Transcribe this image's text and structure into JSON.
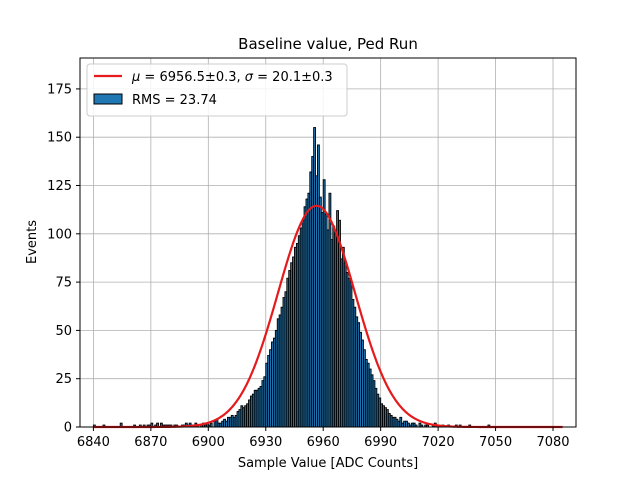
{
  "chart_data": {
    "type": "bar",
    "title": "Baseline value, Ped Run",
    "xlabel": "Sample Value [ADC Counts]",
    "ylabel": "Events",
    "xlim": [
      6833,
      7092
    ],
    "ylim": [
      0,
      191
    ],
    "xticks": [
      6840,
      6870,
      6900,
      6930,
      6960,
      6990,
      7020,
      7050,
      7080
    ],
    "yticks": [
      0,
      25,
      50,
      75,
      100,
      125,
      150,
      175
    ],
    "grid": true,
    "legend_position": "top-left",
    "histogram": {
      "name": "RMS = 23.74",
      "color": "#1f77b4",
      "bin_start": 6840,
      "bin_width": 1,
      "counts": [
        1,
        0,
        0,
        0,
        0,
        1,
        0,
        0,
        0,
        0,
        0,
        0,
        0,
        0,
        2,
        0,
        0,
        0,
        0,
        0,
        0,
        1,
        0,
        0,
        1,
        0,
        1,
        0,
        1,
        1,
        2,
        0,
        1,
        2,
        0,
        2,
        1,
        1,
        1,
        1,
        1,
        0,
        1,
        1,
        0,
        0,
        1,
        1,
        2,
        1,
        2,
        1,
        1,
        2,
        1,
        0,
        1,
        2,
        1,
        2,
        1,
        2,
        0,
        3,
        4,
        2,
        2,
        3,
        4,
        3,
        5,
        5,
        6,
        5,
        6,
        8,
        9,
        11,
        10,
        11,
        12,
        14,
        16,
        17,
        19,
        19,
        20,
        21,
        24,
        26,
        33,
        37,
        40,
        44,
        46,
        50,
        56,
        58,
        62,
        67,
        70,
        77,
        81,
        85,
        88,
        93,
        95,
        99,
        103,
        107,
        114,
        118,
        121,
        132,
        140,
        155,
        130,
        146,
        119,
        111,
        128,
        110,
        102,
        121,
        97,
        104,
        100,
        112,
        107,
        87,
        93,
        85,
        80,
        77,
        75,
        66,
        62,
        57,
        54,
        49,
        45,
        40,
        35,
        33,
        30,
        27,
        24,
        20,
        17,
        15,
        12,
        11,
        10,
        9,
        7,
        6,
        5,
        5,
        4,
        3,
        5,
        2,
        3,
        3,
        2,
        1,
        2,
        2,
        1,
        0,
        2,
        1,
        0,
        1,
        1,
        0,
        0,
        1,
        2,
        1,
        0,
        0,
        1,
        0,
        0,
        1,
        0,
        0,
        0,
        1,
        0,
        1,
        0,
        0,
        0,
        0,
        1,
        0,
        0,
        0,
        0,
        0,
        0,
        0,
        0,
        0,
        1,
        0,
        0,
        0,
        0,
        0,
        0,
        0,
        0,
        0,
        0,
        0,
        0,
        0,
        0,
        0,
        0,
        0,
        0,
        0,
        0,
        0,
        0,
        0,
        0,
        0,
        0,
        0,
        0,
        0,
        0,
        0,
        0,
        0,
        0,
        0,
        0,
        0,
        0,
        0,
        0
      ]
    },
    "fit": {
      "name": "μ = 6956.5±0.3, σ = 20.1±0.3",
      "name_parts": [
        "μ",
        " = 6956.5±0.3, ",
        "σ",
        " = 20.1±0.3"
      ],
      "type": "gaussian",
      "mu": 6956.5,
      "sigma": 20.1,
      "amplitude": 114.5,
      "x_range": [
        6840,
        7085
      ],
      "color": "#e41a1c"
    }
  }
}
